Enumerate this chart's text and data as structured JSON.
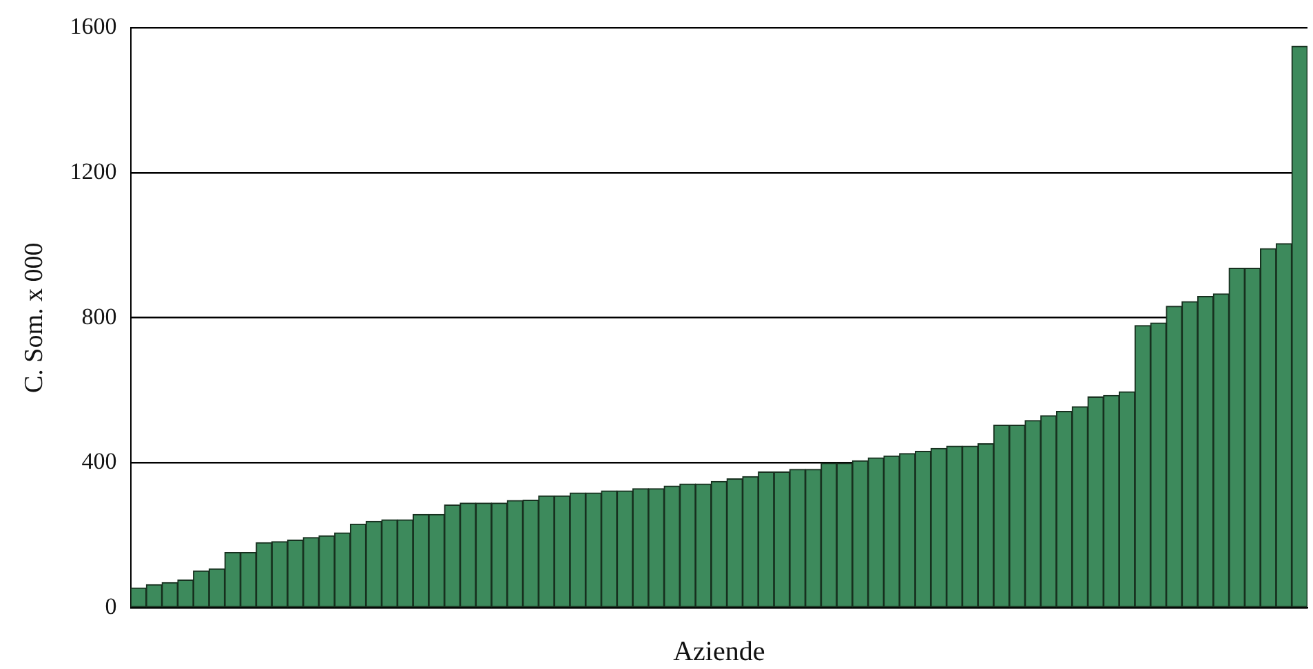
{
  "chart_data": {
    "type": "bar",
    "xlabel": "Aziende",
    "ylabel": "C. Som. x 000",
    "categories": [
      null,
      null,
      null,
      null,
      null,
      null,
      null,
      null,
      null,
      null,
      null,
      null,
      null,
      null,
      null,
      null,
      null,
      null,
      null,
      null,
      null,
      null,
      null,
      null,
      null,
      null,
      null,
      null,
      null,
      null,
      null,
      null,
      null,
      null,
      null,
      null,
      null,
      null,
      null,
      null,
      null,
      null,
      null,
      null,
      null,
      null,
      null,
      null,
      null,
      null,
      null,
      null,
      null,
      null,
      null,
      null,
      null,
      null,
      null,
      null,
      null,
      null,
      null,
      null,
      null,
      null,
      null,
      null,
      null,
      null,
      null,
      null,
      null,
      null,
      null
    ],
    "values": [
      55,
      64,
      70,
      77,
      102,
      108,
      153,
      153,
      180,
      183,
      187,
      194,
      199,
      207,
      231,
      239,
      243,
      243,
      258,
      258,
      284,
      289,
      289,
      289,
      296,
      297,
      309,
      309,
      317,
      317,
      323,
      323,
      329,
      329,
      336,
      342,
      342,
      349,
      356,
      362,
      375,
      375,
      382,
      382,
      399,
      399,
      406,
      414,
      419,
      426,
      432,
      440,
      446,
      446,
      453,
      504,
      504,
      517,
      530,
      542,
      555,
      582,
      586,
      596,
      779,
      786,
      832,
      845,
      859,
      866,
      937,
      937,
      991,
      1005,
      1549
    ],
    "color": "#3d8a5c",
    "ylim": [
      0,
      1600
    ],
    "yticks": [
      0,
      400,
      800,
      1200,
      1600
    ],
    "grid": "y",
    "legend": false
  }
}
